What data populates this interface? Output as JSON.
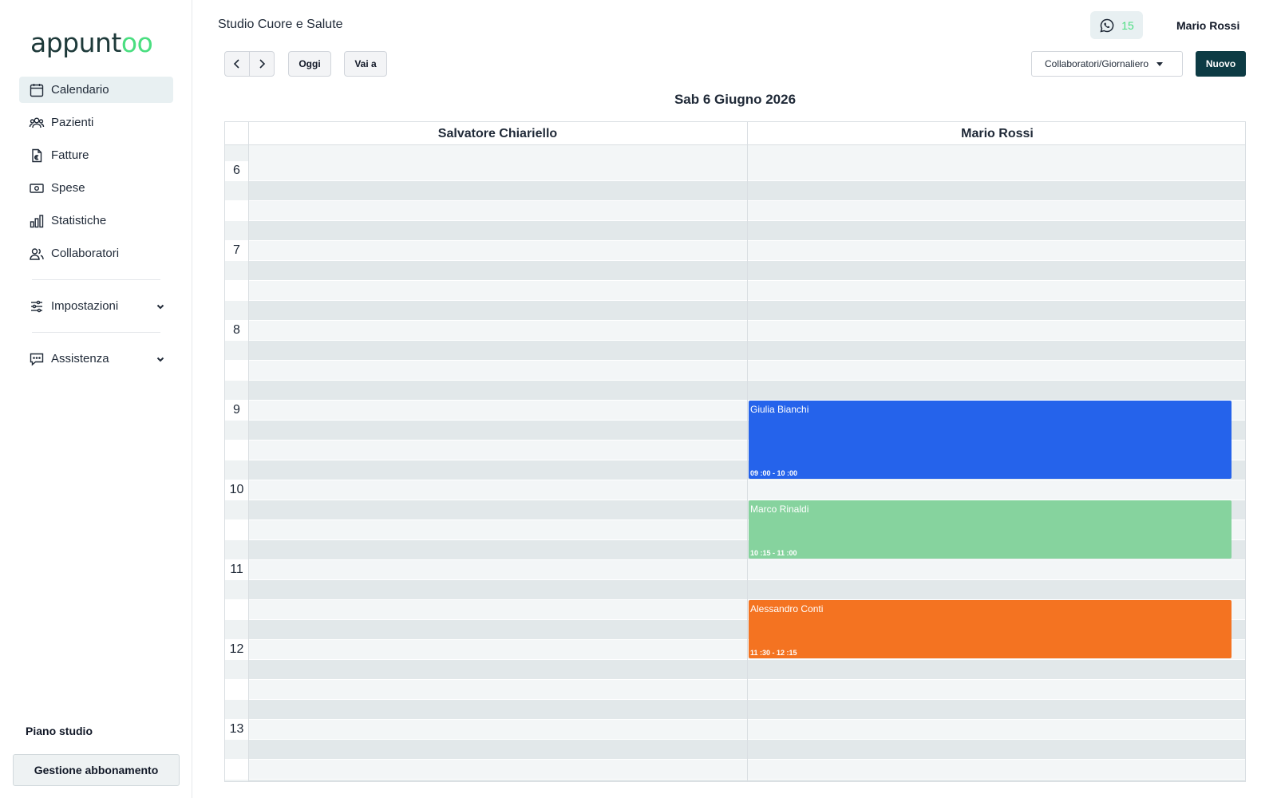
{
  "sidebar": {
    "logo_main": "appunt",
    "logo_accent": "oo",
    "items": [
      {
        "label": "Calendario",
        "icon": "calendar-icon",
        "active": true
      },
      {
        "label": "Pazienti",
        "icon": "users-icon"
      },
      {
        "label": "Fatture",
        "icon": "invoice-euro-icon"
      },
      {
        "label": "Spese",
        "icon": "banknote-icon"
      },
      {
        "label": "Statistiche",
        "icon": "bar-chart-icon"
      },
      {
        "label": "Collaboratori",
        "icon": "collaborators-icon"
      }
    ],
    "settings_label": "Impostazioni",
    "support_label": "Assistenza",
    "plan_label": "Piano studio",
    "plan_button": "Gestione abbonamento"
  },
  "header": {
    "studio_name": "Studio Cuore e Salute",
    "whatsapp_count": "15",
    "user_name": "Mario Rossi"
  },
  "toolbar": {
    "today_label": "Oggi",
    "goto_label": "Vai a",
    "view_select": "Collaboratori/Giornaliero",
    "new_label": "Nuovo"
  },
  "calendar": {
    "date_title": "Sab 6 Giugno 2026",
    "columns": [
      "Salvatore Chiariello",
      "Mario Rossi"
    ],
    "hours": [
      "6",
      "7",
      "8",
      "9",
      "10",
      "11",
      "12",
      "13"
    ],
    "events": [
      {
        "name": "Giulia Bianchi",
        "time": "09 :00 - 10 :00",
        "color": "#2563eb",
        "column": 1,
        "start": 9.0,
        "end": 10.0
      },
      {
        "name": "Marco Rinaldi",
        "time": "10 :15 - 11 :00",
        "color": "#86d39e",
        "column": 1,
        "start": 10.25,
        "end": 11.0
      },
      {
        "name": "Alessandro Conti",
        "time": "11 :30 - 12 :15",
        "color": "#f47321",
        "column": 1,
        "start": 11.5,
        "end": 12.25
      }
    ]
  },
  "colors": {
    "primary": "#0d3b44",
    "accent_green": "#4ade80",
    "event_blue": "#2563eb",
    "event_green": "#86d39e",
    "event_orange": "#f47321"
  }
}
